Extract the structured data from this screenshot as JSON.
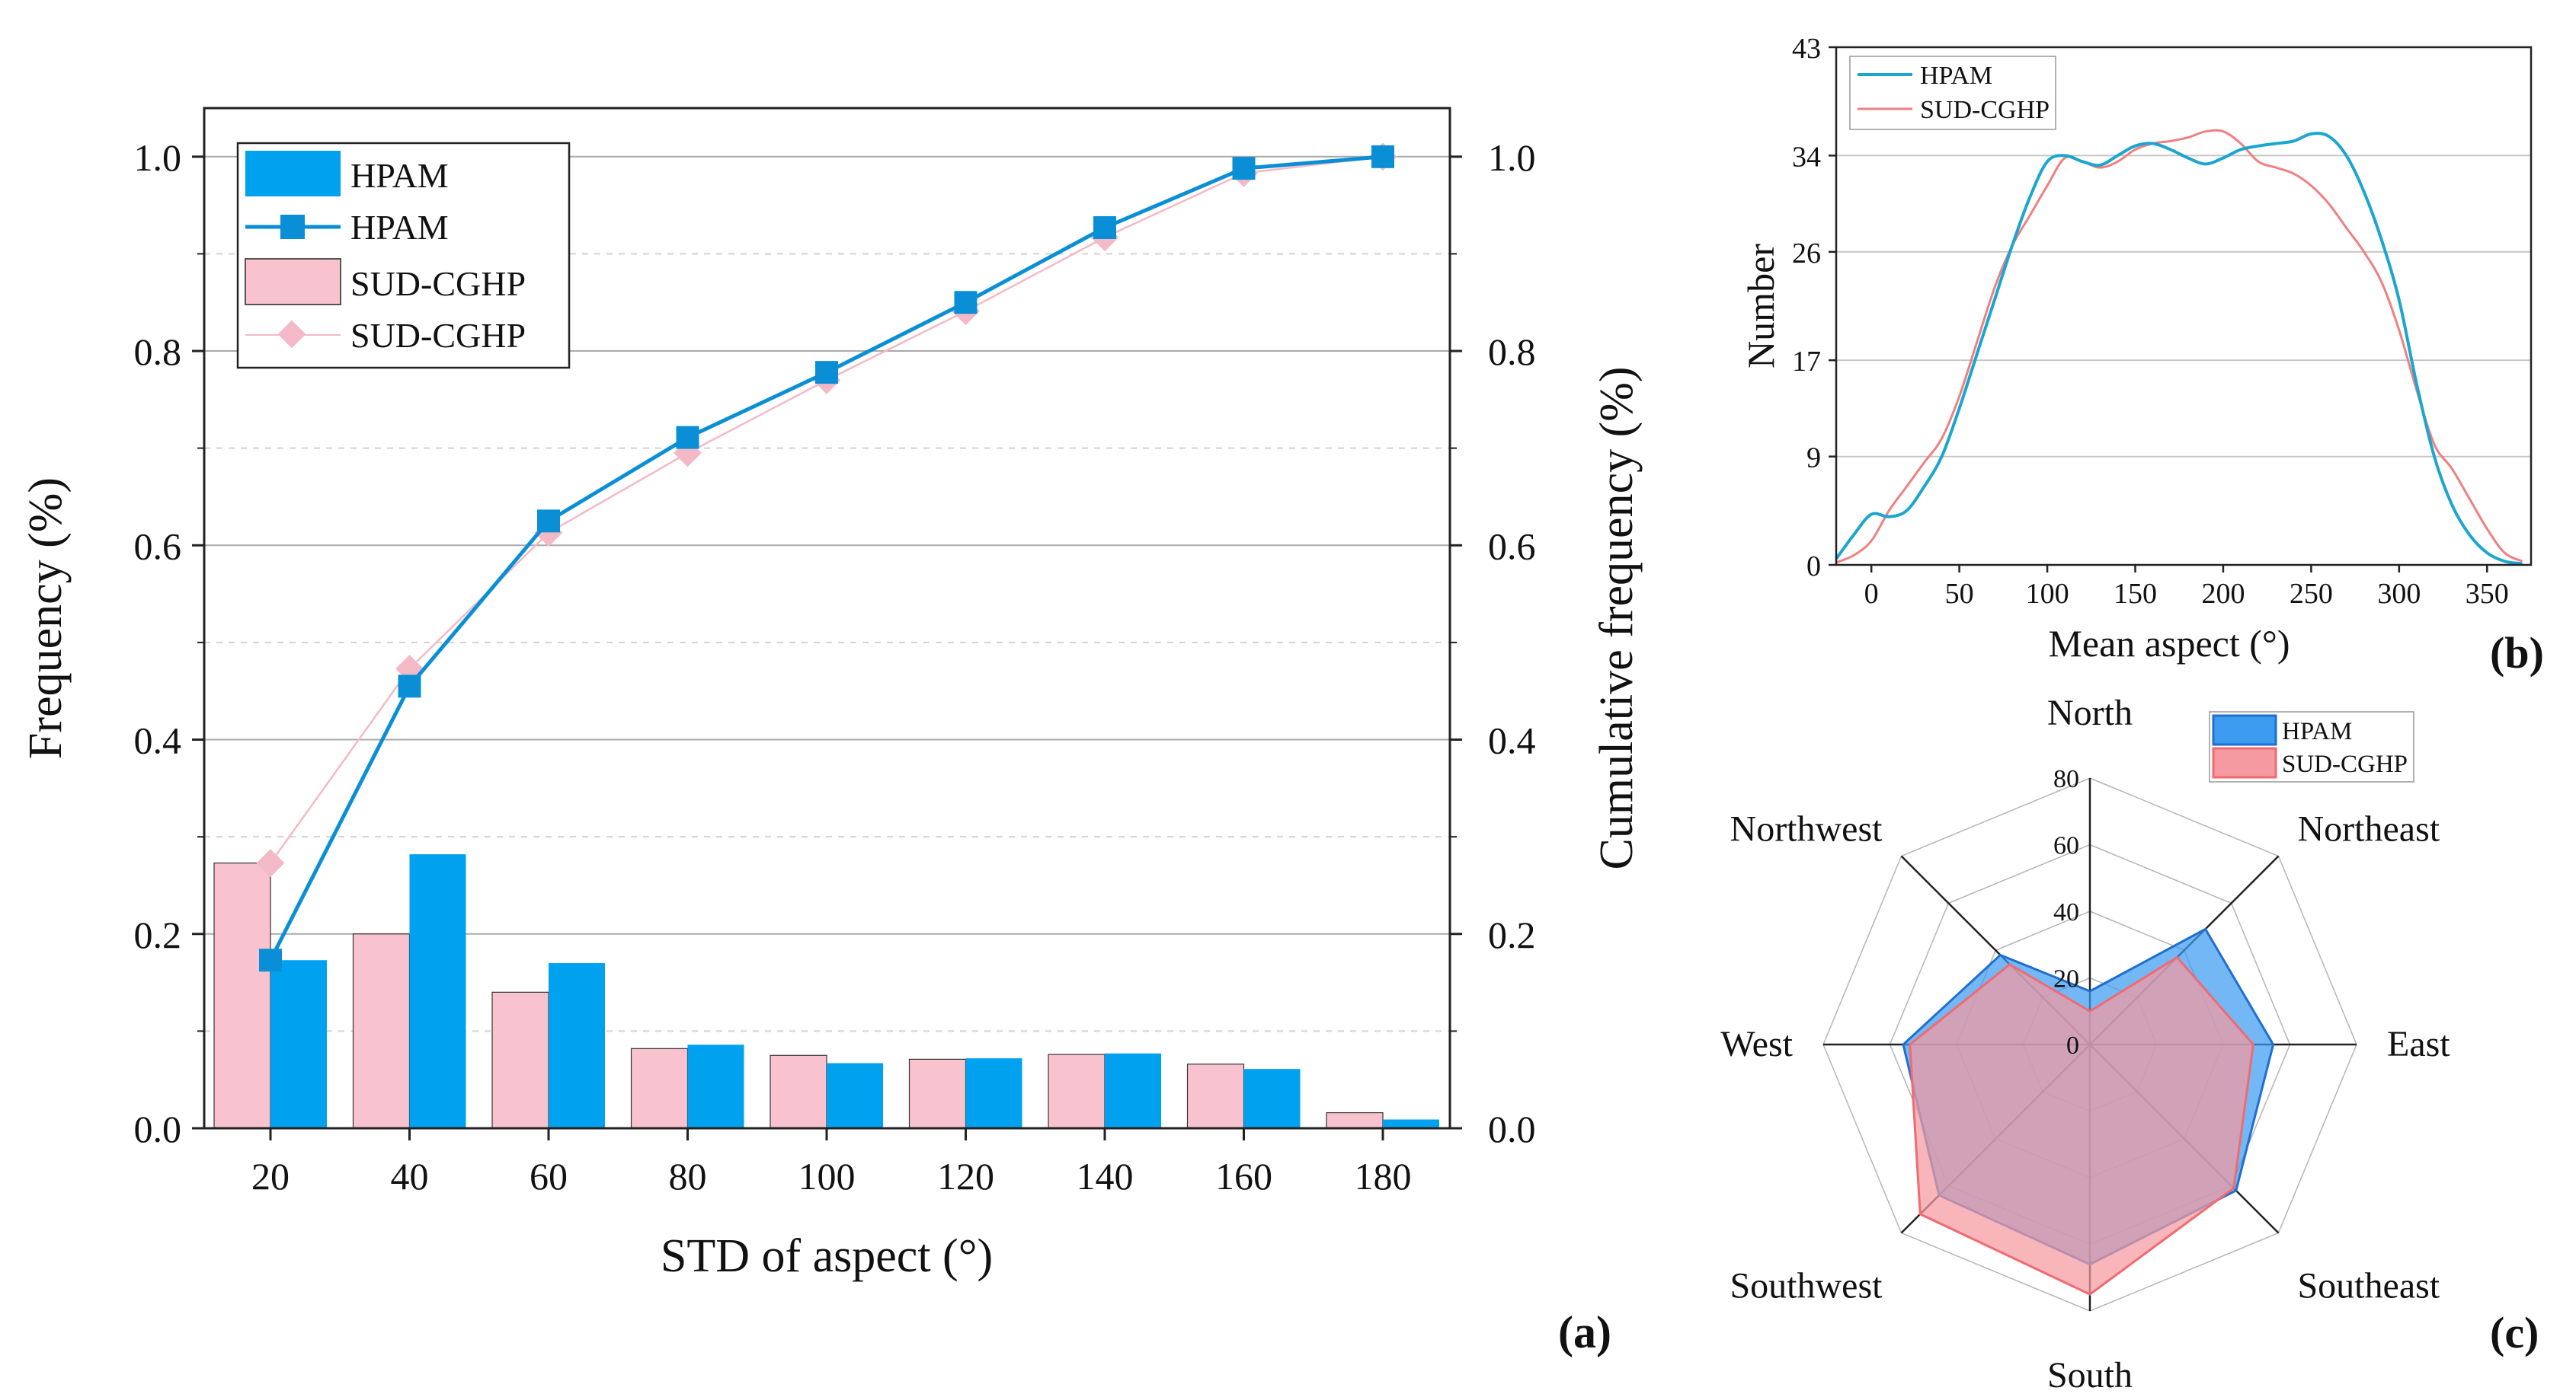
{
  "colors": {
    "hpam": "#00a2f0",
    "hpam_line": "#0a8fd6",
    "sud_bar": "#f8c3cf",
    "sud_line": "#f4b9c6",
    "sud_b": "#f07f80",
    "hpam_b": "#1ba6cf",
    "radar_hpam_fill": "#3d9bf0",
    "radar_hpam_edge": "#1f6fd0",
    "radar_sud_fill": "#f59aa0",
    "radar_sud_edge": "#f06a72",
    "grid": "#b5b5b5"
  },
  "chart_data": [
    {
      "panel": "(a)",
      "type": "bar+line",
      "xlabel": "STD of aspect (°)",
      "ylabel": "Frequency (%)",
      "ylabel_right": "Cumulative frequency (%)",
      "categories": [
        "20",
        "40",
        "60",
        "80",
        "100",
        "120",
        "140",
        "160",
        "180"
      ],
      "yticks": [
        "0.0",
        "0.2",
        "0.4",
        "0.6",
        "0.8",
        "1.0"
      ],
      "ylim": [
        0,
        1.05
      ],
      "series": [
        {
          "name": "SUD-CGHP",
          "kind": "bar",
          "values": [
            0.273,
            0.2,
            0.14,
            0.082,
            0.075,
            0.071,
            0.076,
            0.066,
            0.016
          ]
        },
        {
          "name": "HPAM",
          "kind": "bar",
          "values": [
            0.173,
            0.282,
            0.17,
            0.086,
            0.067,
            0.072,
            0.077,
            0.061,
            0.009
          ]
        },
        {
          "name": "HPAM",
          "kind": "line",
          "values": [
            0.173,
            0.455,
            0.625,
            0.711,
            0.778,
            0.85,
            0.927,
            0.988,
            1.0
          ]
        },
        {
          "name": "SUD-CGHP",
          "kind": "line",
          "values": [
            0.273,
            0.473,
            0.613,
            0.695,
            0.77,
            0.841,
            0.917,
            0.983,
            1.0
          ]
        }
      ],
      "legend": [
        "HPAM",
        "HPAM",
        "SUD-CGHP",
        "SUD-CGHP"
      ],
      "legend_position": "top-left"
    },
    {
      "panel": "(b)",
      "type": "line",
      "xlabel": "Mean aspect (°)",
      "ylabel": "Number",
      "xlim": [
        -20,
        375
      ],
      "ylim": [
        0,
        43
      ],
      "xticks": [
        "0",
        "50",
        "100",
        "150",
        "200",
        "250",
        "300",
        "350"
      ],
      "yticks": [
        "0",
        "9",
        "17",
        "26",
        "34",
        "43"
      ],
      "series": [
        {
          "name": "HPAM",
          "x": [
            -20,
            -10,
            0,
            10,
            20,
            30,
            40,
            50,
            60,
            70,
            80,
            90,
            100,
            110,
            120,
            130,
            140,
            150,
            160,
            170,
            180,
            190,
            200,
            210,
            220,
            230,
            240,
            250,
            260,
            270,
            280,
            290,
            300,
            310,
            320,
            330,
            340,
            350,
            360,
            370
          ],
          "y": [
            0.5,
            2.5,
            4.2,
            4.0,
            4.5,
            6.5,
            9.0,
            13.0,
            17.5,
            22.0,
            26.5,
            30.5,
            33.5,
            34.0,
            33.5,
            33.2,
            34.0,
            34.8,
            35.0,
            34.5,
            33.8,
            33.3,
            33.8,
            34.5,
            34.8,
            35.0,
            35.2,
            35.8,
            35.6,
            34.0,
            31.0,
            27.0,
            22.0,
            15.0,
            9.0,
            5.0,
            2.5,
            1.0,
            0.3,
            0.1
          ]
        },
        {
          "name": "SUD-CGHP",
          "x": [
            -20,
            -10,
            0,
            10,
            20,
            30,
            40,
            50,
            60,
            70,
            80,
            90,
            100,
            110,
            120,
            130,
            140,
            150,
            160,
            170,
            180,
            190,
            200,
            210,
            220,
            230,
            240,
            250,
            260,
            270,
            280,
            290,
            300,
            310,
            320,
            330,
            340,
            350,
            360,
            370
          ],
          "y": [
            0.2,
            0.8,
            2.0,
            4.5,
            6.5,
            8.5,
            10.5,
            14.0,
            18.5,
            23.0,
            26.5,
            29.0,
            31.5,
            33.8,
            33.5,
            33.0,
            33.5,
            34.5,
            35.0,
            35.2,
            35.5,
            36.0,
            36.0,
            35.0,
            33.5,
            33.0,
            32.5,
            31.5,
            30.0,
            28.0,
            26.0,
            23.5,
            19.5,
            14.5,
            10.0,
            8.0,
            5.5,
            3.0,
            1.0,
            0.3
          ]
        }
      ],
      "legend": [
        "HPAM",
        "SUD-CGHP"
      ],
      "legend_position": "top-left"
    },
    {
      "panel": "(c)",
      "type": "radar",
      "categories": [
        "North",
        "Northeast",
        "East",
        "Southeast",
        "South",
        "Southwest",
        "West",
        "Northwest"
      ],
      "rticks": [
        "0",
        "20",
        "40",
        "60",
        "80"
      ],
      "rlim": [
        0,
        80
      ],
      "series": [
        {
          "name": "HPAM",
          "values": [
            16,
            49,
            55,
            62,
            66,
            64,
            56,
            38
          ]
        },
        {
          "name": "SUD-CGHP",
          "values": [
            10,
            37,
            49,
            61,
            75,
            72,
            54,
            34
          ]
        }
      ],
      "legend": [
        "HPAM",
        "SUD-CGHP"
      ],
      "legend_position": "top-right"
    }
  ]
}
